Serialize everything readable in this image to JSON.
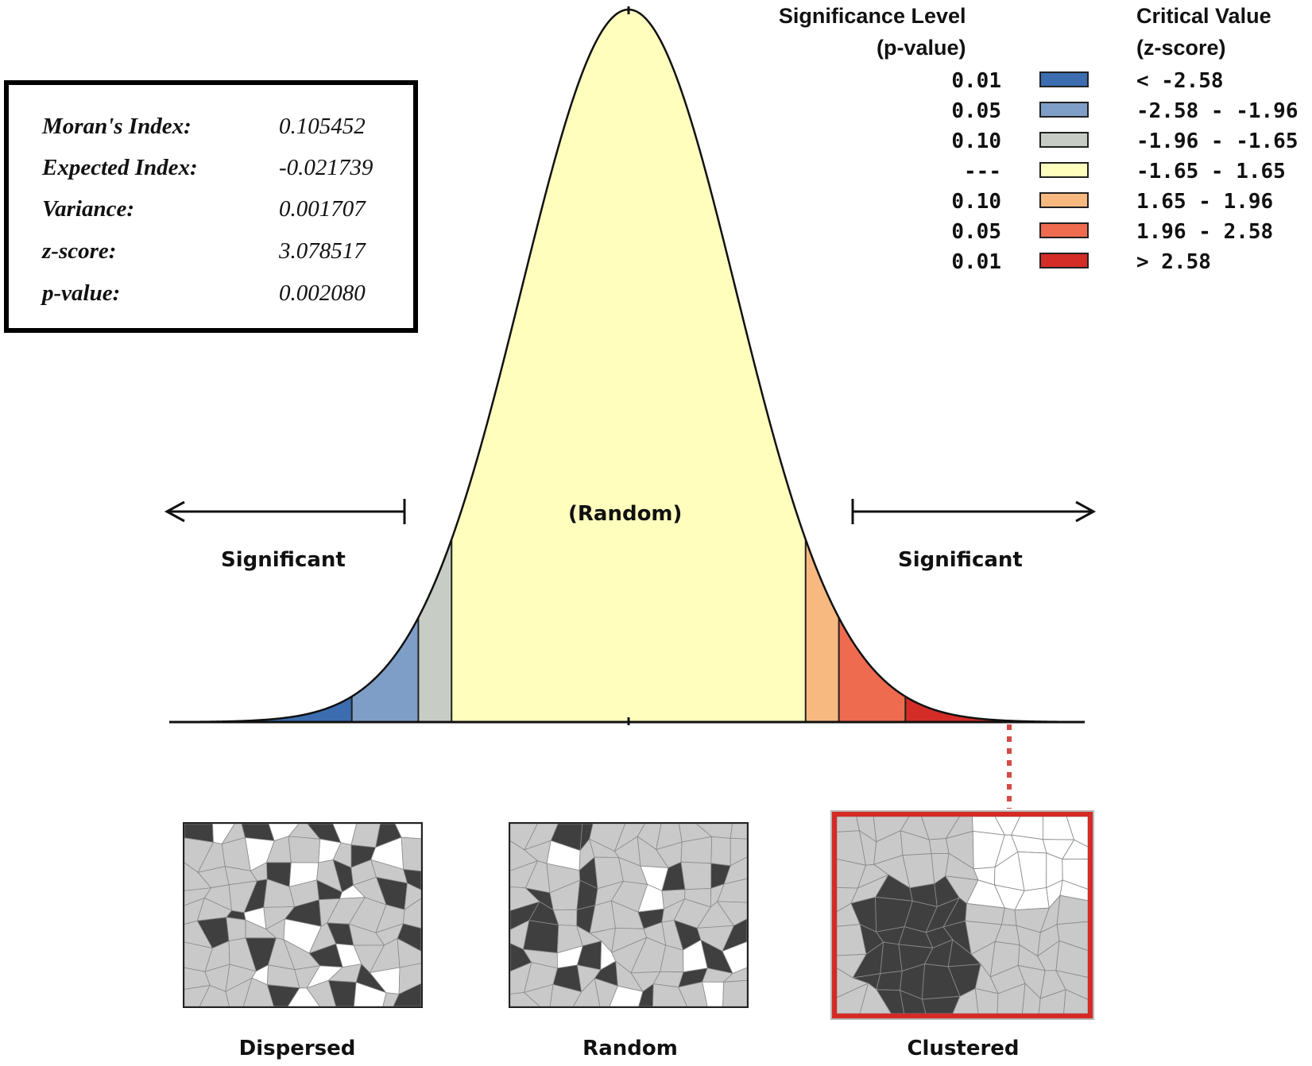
{
  "stats": {
    "rows": [
      {
        "label": "Moran's Index:",
        "value": "0.105452"
      },
      {
        "label": "Expected Index:",
        "value": "-0.021739"
      },
      {
        "label": "Variance:",
        "value": "0.001707"
      },
      {
        "label": "z-score:",
        "value": "3.078517"
      },
      {
        "label": "p-value:",
        "value": "0.002080"
      }
    ]
  },
  "legend": {
    "header_significance_line1": "Significance Level",
    "header_significance_line2": "(p-value)",
    "header_critical_line1": "Critical Value",
    "header_critical_line2": "(z-score)",
    "rows": [
      {
        "p": "0.01",
        "z": "< -2.58",
        "color": "#3c6db0"
      },
      {
        "p": "0.05",
        "z": "-2.58 - -1.96",
        "color": "#7f9ec7"
      },
      {
        "p": "0.10",
        "z": "-1.96 - -1.65",
        "color": "#c7ccc4"
      },
      {
        "p": "---",
        "z": "-1.65 - 1.65",
        "color": "#fffebd"
      },
      {
        "p": "0.10",
        "z": "1.65 - 1.96",
        "color": "#f7b97f"
      },
      {
        "p": "0.05",
        "z": "1.96 - 2.58",
        "color": "#ee6b4f"
      },
      {
        "p": "0.01",
        "z": "> 2.58",
        "color": "#d42d27"
      }
    ]
  },
  "curve": {
    "center_label": "(Random)",
    "left_label": "Significant",
    "right_label": "Significant",
    "z_breaks": [
      -2.58,
      -1.96,
      -1.65,
      1.65,
      1.96,
      2.58
    ],
    "band_colors": [
      "#3c6db0",
      "#7f9ec7",
      "#c7ccc4",
      "#fffebd",
      "#f7b97f",
      "#ee6b4f",
      "#d42d27"
    ],
    "highlight_band": "clustered"
  },
  "maps": {
    "dispersed_caption": "Dispersed",
    "random_caption": "Random",
    "clustered_caption": "Clustered",
    "cell_colors": {
      "dark": "#3f3f3f",
      "light": "#c9c9c9",
      "white": "#ffffff"
    }
  }
}
